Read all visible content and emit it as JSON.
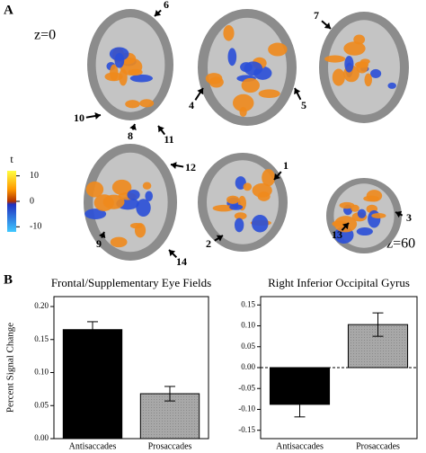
{
  "panel_a": {
    "label": "A",
    "slice_top": "z=0",
    "slice_bottom": "z=60",
    "colorbar": {
      "label": "t",
      "lim": [
        -12,
        12
      ],
      "ticks": [
        10,
        0,
        -10
      ]
    },
    "markers": [
      "6",
      "7",
      "4",
      "5",
      "10",
      "8",
      "11",
      "12",
      "1",
      "2",
      "9",
      "14",
      "3",
      "13"
    ]
  },
  "panel_b": {
    "label": "B"
  },
  "chart_data": [
    {
      "type": "bar",
      "title": "Frontal/Supplementary Eye Fields",
      "ylabel": "Percent Signal Change",
      "categories": [
        "Antisaccades",
        "Prosaccades"
      ],
      "values": [
        0.165,
        0.068
      ],
      "errors": [
        0.012,
        0.011
      ],
      "colors": [
        "#000000",
        "#a8a8a8"
      ],
      "ylim": [
        0,
        0.215
      ],
      "yticks": [
        {
          "value": 0,
          "label": "0.00"
        },
        {
          "value": 0.05,
          "label": "0.05"
        },
        {
          "value": 0.1,
          "label": "0.10"
        },
        {
          "value": 0.15,
          "label": "0.15"
        },
        {
          "value": 0.2,
          "label": "0.20"
        }
      ]
    },
    {
      "type": "bar",
      "title": "Right Inferior Occipital Gyrus",
      "categories": [
        "Antisaccades",
        "Prosaccades"
      ],
      "values": [
        -0.088,
        0.103
      ],
      "errors": [
        0.03,
        0.028
      ],
      "colors": [
        "#000000",
        "#a8a8a8"
      ],
      "ylim": [
        -0.17,
        0.17
      ],
      "yticks": [
        {
          "value": -0.15,
          "label": "-0.15"
        },
        {
          "value": -0.1,
          "label": "-0.10"
        },
        {
          "value": -0.05,
          "label": "-0.05"
        },
        {
          "value": 0,
          "label": "0.00"
        },
        {
          "value": 0.05,
          "label": "0.05"
        },
        {
          "value": 0.1,
          "label": "0.10"
        },
        {
          "value": 0.15,
          "label": "0.15"
        }
      ]
    }
  ]
}
